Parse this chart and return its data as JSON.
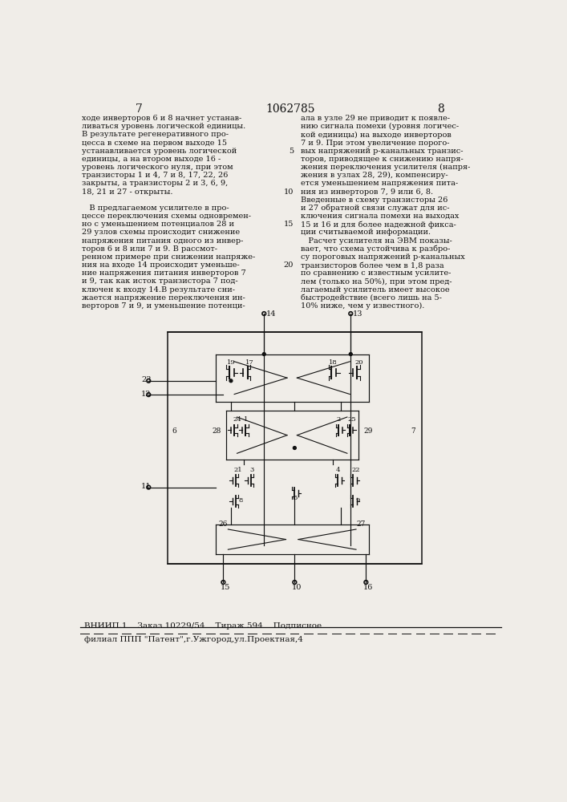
{
  "page_number_left": "7",
  "page_number_center": "1062785",
  "page_number_right": "8",
  "bg_color": "#f0ede8",
  "text_color": "#111111",
  "col1_lines": [
    "ходе инверторов 6 и 8 начнет устанав-",
    "ливаться уровень логической единицы.",
    "В результате регенеративного про-",
    "цесса в схеме на первом выходе 15",
    "устанавливается уровень логической",
    "единицы, а на втором выходе 16 -",
    "уровень логического нуля, при этом",
    "транзисторы 1 и 4, 7 и 8, 17, 22, 26",
    "закрыты, а транзисторы 2 и 3, 6, 9,",
    "18, 21 и 27 - открыты.",
    "",
    "   В предлагаемом усилителе в про-",
    "цессе переключения схемы одновремен-",
    "но с уменьшением потенциалов 28 и",
    "29 узлов схемы происходит снижение",
    "напряжения питания одного из инвер-",
    "торов 6 и 8 или 7 и 9. В рассмот-",
    "ренном примере при снижении напряже-",
    "ния на входе 14 происходит уменьше-",
    "ние напряжения питания инверторов 7",
    "и 9, так как исток транзистора 7 под-",
    "ключен к входу 14.В результате сни-",
    "жается напряжение переключения ин-",
    "верторов 7 и 9, и уменьшение потенци-"
  ],
  "col2_lines": [
    [
      "ала в узле 29 не приводит к появле-",
      null
    ],
    [
      "нию сигнала помехи (уровня логичес-",
      null
    ],
    [
      "кой единицы) на выходе инверторов",
      null
    ],
    [
      "7 и 9. При этом увеличение порого-",
      null
    ],
    [
      "вых напряжений р-канальных транзис-",
      5
    ],
    [
      "торов, приводящее к снижению напря-",
      null
    ],
    [
      "жения переключения усилителя (напря-",
      null
    ],
    [
      "жения в узлах 28, 29), компенсиру-",
      null
    ],
    [
      "ется уменьшением напряжения пита-",
      null
    ],
    [
      "ния из инверторов 7, 9 или 6, 8.",
      10
    ],
    [
      "Введенные в схему транзисторы 26",
      null
    ],
    [
      "и 27 обратной связи служат для ис-",
      null
    ],
    [
      "ключения сигнала помехи на выходах",
      null
    ],
    [
      "15 и 16 и для более надежной фикса-",
      15
    ],
    [
      "ции считываемой информации.",
      null
    ],
    [
      "   Расчет усилителя на ЭВМ показы-",
      null
    ],
    [
      "вает, что схема устойчива к разбро-",
      null
    ],
    [
      "су пороговых напряжений р-канальных",
      null
    ],
    [
      "транзисторов более чем в 1,8 раза",
      20
    ],
    [
      "по сравнению с известным усилите-",
      null
    ],
    [
      "лем (только на 50%), при этом пред-",
      null
    ],
    [
      "лагаемый усилитель имеет высокое",
      null
    ],
    [
      "быстродействие (всего лишь на 5-",
      null
    ],
    [
      "10% ниже, чем у известного).",
      null
    ]
  ],
  "footer_line1": "ВНИИП.1    Заказ 10229/54    Тираж 594    Подписное",
  "footer_line2": "филиал ППП \"Патент\",г.Ужгород,ул.Проектная,4"
}
